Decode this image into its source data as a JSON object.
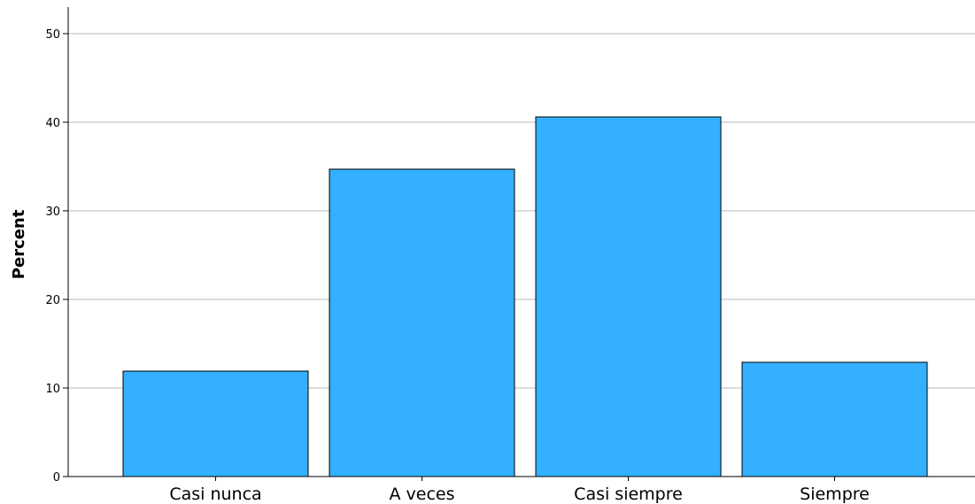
{
  "chart_data": {
    "type": "bar",
    "categories": [
      "Casi nunca",
      "A veces",
      "Casi siempre",
      "Siempre"
    ],
    "values": [
      11.9,
      34.7,
      40.6,
      12.9
    ],
    "title": "",
    "xlabel": "",
    "ylabel": "Percent",
    "ylim": [
      0,
      53
    ],
    "yticks": [
      0,
      10,
      20,
      30,
      40,
      50
    ],
    "grid": true,
    "bar_color": "#33b0ff",
    "bar_outline_color": "#000000"
  }
}
